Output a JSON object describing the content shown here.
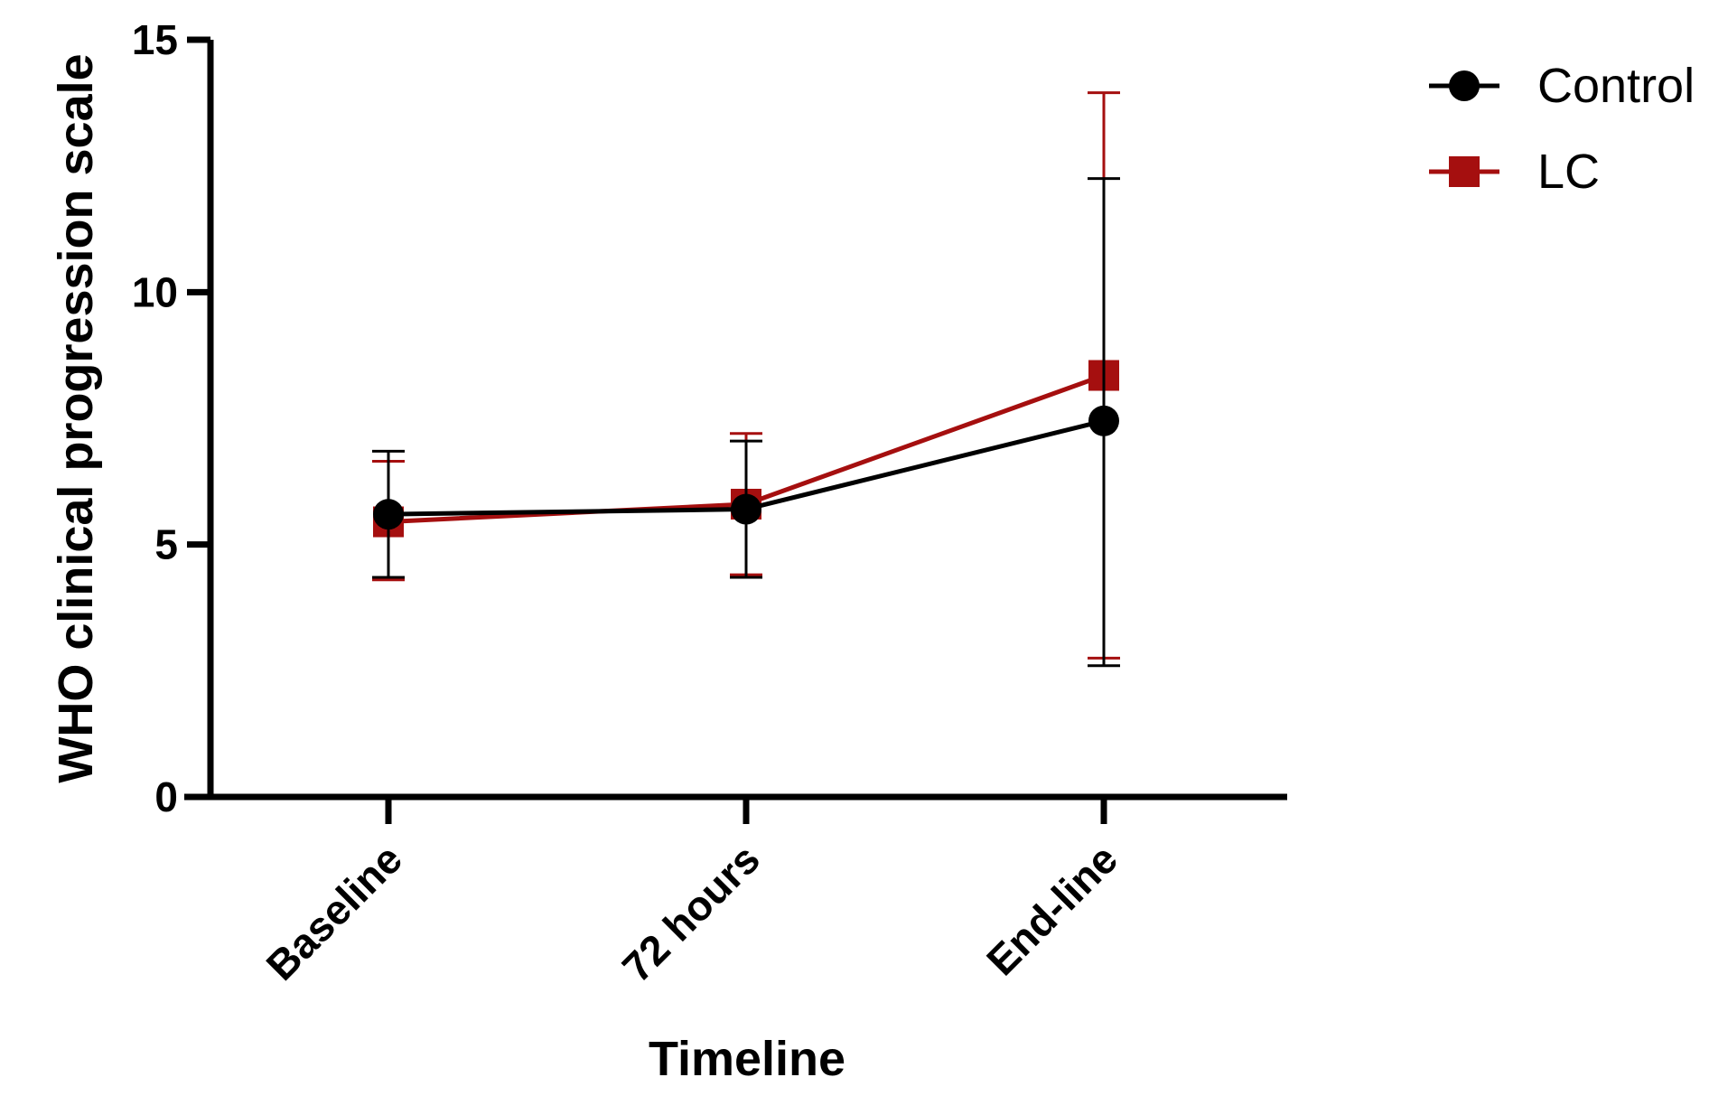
{
  "chart_data": {
    "type": "line",
    "title": "",
    "xlabel": "Timeline",
    "ylabel": "WHO clinical progression scale",
    "categories": [
      "Baseline",
      "72 hours",
      "End-line"
    ],
    "ylim": [
      0,
      15
    ],
    "yticks": [
      "0",
      "5",
      "10",
      "15"
    ],
    "grid": false,
    "legend_position": "top-right",
    "series": [
      {
        "name": "Control",
        "color": "#000000",
        "marker": "circle",
        "values": [
          5.6,
          5.7,
          7.45
        ],
        "err_low": [
          4.35,
          4.35,
          2.6
        ],
        "err_high": [
          6.85,
          7.05,
          12.25
        ]
      },
      {
        "name": "LC",
        "color": "#a50f0f",
        "marker": "square",
        "values": [
          5.45,
          5.8,
          8.35
        ],
        "err_low": [
          4.3,
          4.4,
          2.75
        ],
        "err_high": [
          6.65,
          7.2,
          13.95
        ]
      }
    ]
  }
}
